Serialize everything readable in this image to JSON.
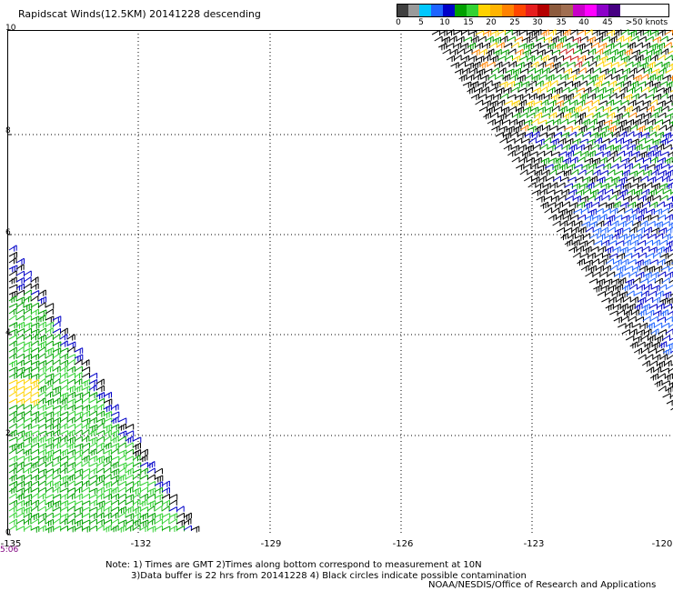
{
  "title": "Rapidscat Winds(12.5KM) 20141228 descending",
  "legend": {
    "colors": [
      "#404040",
      "#9a9a9a",
      "#00c8ff",
      "#1e64ff",
      "#0000c8",
      "#00a000",
      "#32d232",
      "#ffd200",
      "#ffb400",
      "#ff8200",
      "#ff4600",
      "#e61e1e",
      "#b40000",
      "#8c5a3c",
      "#a06e50",
      "#c800c8",
      "#ff00ff",
      "#8c00c8",
      "#460082"
    ],
    "labels": [
      "0",
      "5",
      "10",
      "15",
      "20",
      "25",
      "30",
      "35",
      "40",
      "45",
      ">50 knots"
    ]
  },
  "axes": {
    "x_ticks": [
      "-135",
      "-132",
      "-129",
      "-126",
      "-123",
      "-120"
    ],
    "y_ticks": [
      "10",
      "8",
      "6",
      "4",
      "2",
      "0"
    ]
  },
  "time_label": "5:06",
  "note_line1": "Note: 1) Times are GMT 2)Times along bottom correspond to measurement at 10N",
  "note_line2": "3)Data buffer is 22 hrs from 20141228 4) Black circles indicate possible contamination",
  "credit": "NOAA/NESDIS/Office of Research and Applications",
  "colors": {
    "green": "#00a000",
    "light_green": "#32d232",
    "blue": "#0000c8",
    "light_blue": "#1e64ff",
    "black": "#000000",
    "yellow": "#ffd200",
    "orange": "#ff8200",
    "red": "#c81e1e",
    "grid": "#000000"
  }
}
